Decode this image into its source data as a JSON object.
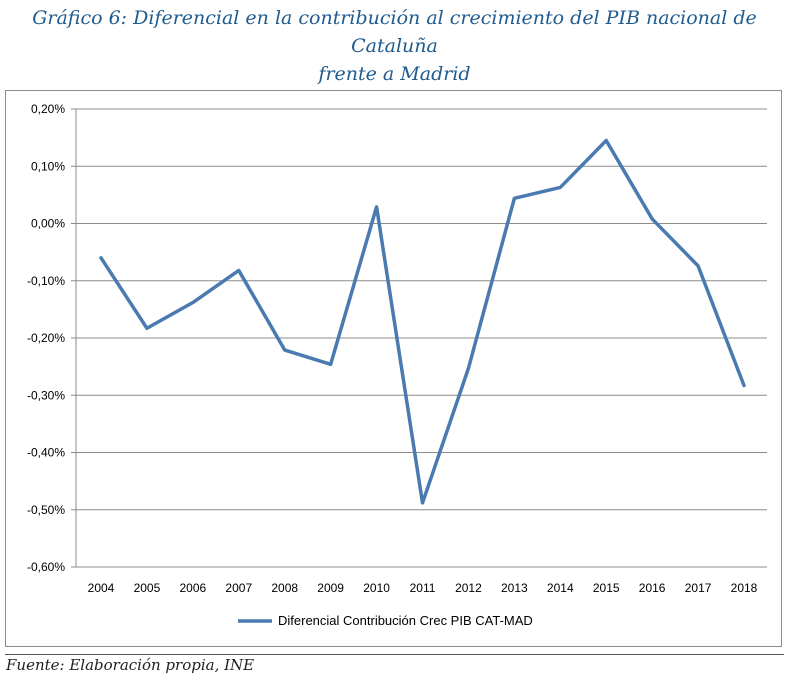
{
  "title": {
    "line1": "Gráfico 6: Diferencial en la contribución al crecimiento del PIB nacional de Cataluña",
    "line2": "frente a Madrid"
  },
  "source": "Fuente: Elaboración propia, INE",
  "colors": {
    "series": "#4a7ab0",
    "grid": "#8c8c8c",
    "title": "#1f5b8e"
  },
  "chart_data": {
    "type": "line",
    "title": "Gráfico 6: Diferencial en la contribución al crecimiento del PIB nacional de Cataluña frente a Madrid",
    "xlabel": "",
    "ylabel": "",
    "ylim": [
      -0.6,
      0.2
    ],
    "y_ticks": [
      0.2,
      0.1,
      0.0,
      -0.1,
      -0.2,
      -0.3,
      -0.4,
      -0.5,
      -0.6
    ],
    "y_tick_labels": [
      "0,20%",
      "0,10%",
      "0,00%",
      "-0,10%",
      "-0,20%",
      "-0,30%",
      "-0,40%",
      "-0,50%",
      "-0,60%"
    ],
    "grid": true,
    "legend_position": "bottom",
    "categories": [
      "2004",
      "2005",
      "2006",
      "2007",
      "2008",
      "2009",
      "2010",
      "2011",
      "2012",
      "2013",
      "2014",
      "2015",
      "2016",
      "2017",
      "2018"
    ],
    "series": [
      {
        "name": "Diferencial Contribución Crec PIB CAT-MAD",
        "values": [
          -0.06,
          -0.183,
          -0.138,
          -0.082,
          -0.221,
          -0.246,
          0.029,
          -0.488,
          -0.253,
          0.044,
          0.063,
          0.145,
          0.008,
          -0.074,
          -0.283
        ]
      }
    ]
  }
}
